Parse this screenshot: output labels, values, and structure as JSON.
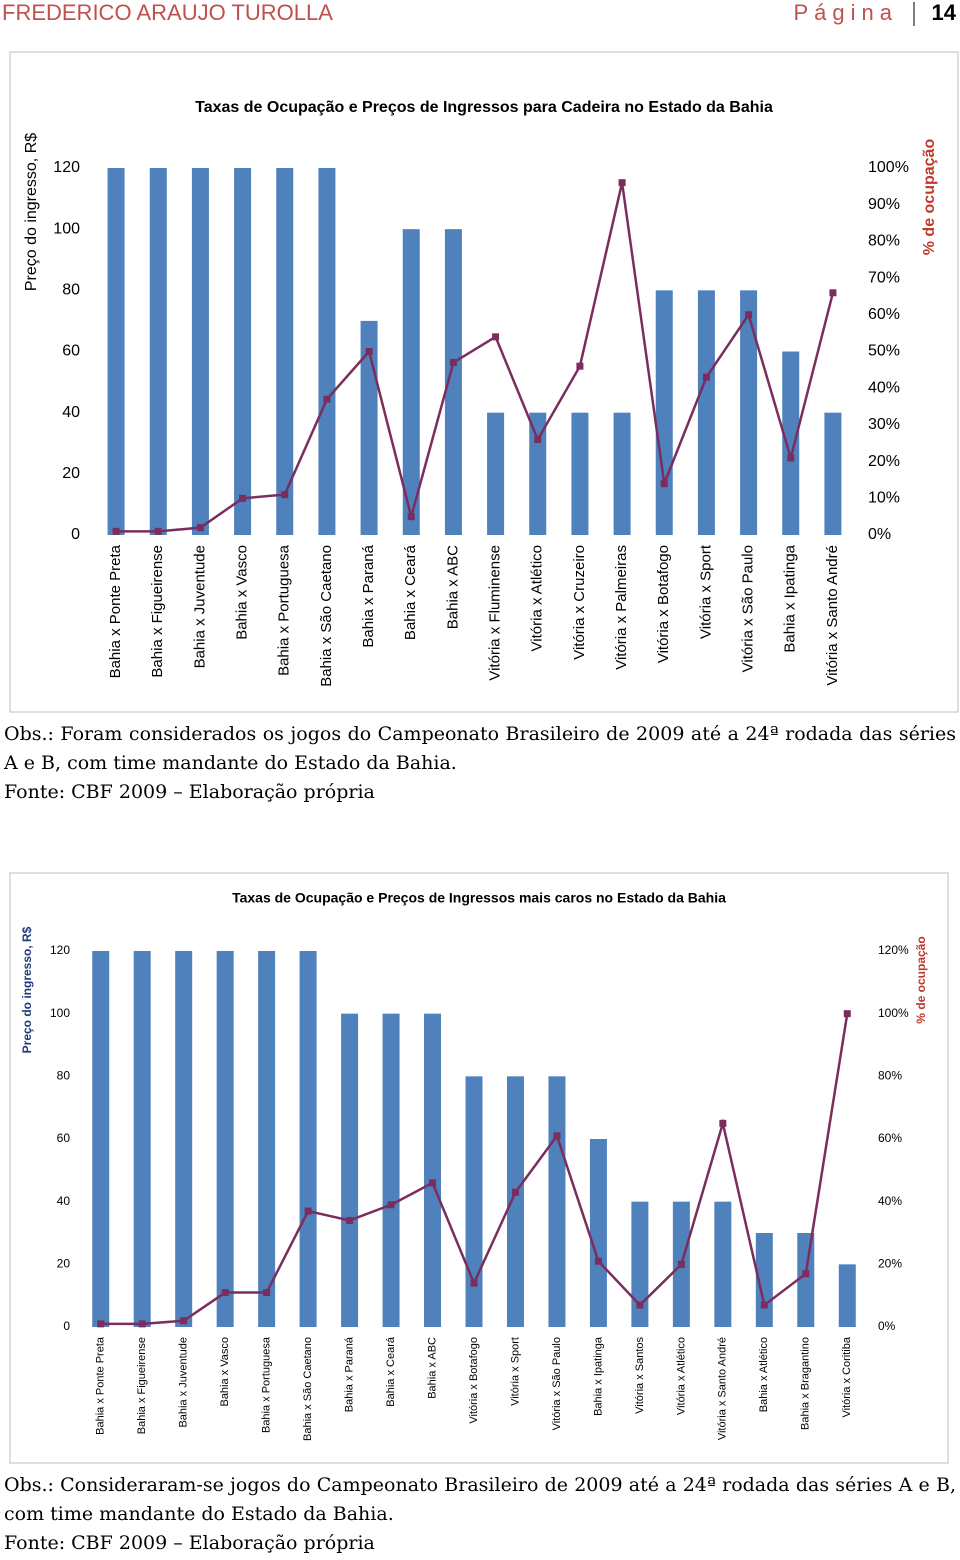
{
  "header": {
    "author": "FREDERICO ARAUJO TUROLLA",
    "page_word": "Página",
    "page_number": "14"
  },
  "chart_data": [
    {
      "type": "bar_line",
      "title": "Taxas de Ocupação e Preços de Ingressos para Cadeira no Estado da Bahia",
      "ylabel": "Preço do ingresso, R$",
      "y2label": "% de ocupação",
      "categories": [
        "Bahia x Ponte Preta",
        "Bahia x Figueirense",
        "Bahia x Juventude",
        "Bahia x Vasco",
        "Bahia x Portuguesa",
        "Bahia x São Caetano",
        "Bahia x Paraná",
        "Bahia x Ceará",
        "Bahia x ABC",
        "Vitória x Fluminense",
        "Vitória x Atlético",
        "Vitória x Cruzeiro",
        "Vitória x Palmeiras",
        "Vitória x Botafogo",
        "Vitória x Sport",
        "Vitória x São Paulo",
        "Bahia x Ipatinga",
        "Vitória x Santo André"
      ],
      "series": [
        {
          "type": "bar",
          "color": "#4f81bd",
          "values": [
            120,
            120,
            120,
            120,
            120,
            120,
            70,
            100,
            100,
            40,
            40,
            40,
            40,
            80,
            80,
            80,
            60,
            40
          ]
        },
        {
          "type": "line",
          "axis": "y2",
          "color": "#7b2d5e",
          "values": [
            1,
            1,
            2,
            10,
            11,
            37,
            50,
            5,
            47,
            54,
            26,
            46,
            96,
            14,
            43,
            60,
            21,
            66
          ]
        }
      ],
      "ylim": [
        0,
        120
      ],
      "yticks": [
        0,
        20,
        40,
        60,
        80,
        100,
        120
      ],
      "y2lim": [
        0,
        100
      ],
      "y2ticks": [
        {
          "value": 0,
          "label": "0%"
        },
        {
          "value": 10,
          "label": "10%"
        },
        {
          "value": 20,
          "label": "20%"
        },
        {
          "value": 30,
          "label": "30%"
        },
        {
          "value": 40,
          "label": "40%"
        },
        {
          "value": 50,
          "label": "50%"
        },
        {
          "value": 60,
          "label": "60%"
        },
        {
          "value": 70,
          "label": "70%"
        },
        {
          "value": 80,
          "label": "80%"
        },
        {
          "value": 90,
          "label": "90%"
        },
        {
          "value": 100,
          "label": "100%"
        }
      ]
    },
    {
      "type": "bar_line",
      "title": "Taxas de Ocupação e Preços de Ingressos mais caros no Estado da Bahia",
      "ylabel": "Preço do ingresso, R$",
      "y2label": "% de ocupação",
      "categories": [
        "Bahia x Ponte Preta",
        "Bahia x Figueirense",
        "Bahia x Juventude",
        "Bahia x Vasco",
        "Bahia x Portuguesa",
        "Bahia x São Caetano",
        "Bahia x Paraná",
        "Bahia x Ceará",
        "Bahia x ABC",
        "Vitória x Botafogo",
        "Vitória x Sport",
        "Vitória x São Paulo",
        "Bahia x Ipatinga",
        "Vitória x Santos",
        "Vitória x Atlético",
        "Vitória x Santo André",
        "Bahia x Atlético",
        "Bahia x Bragantino",
        "Vitória x Coritiba"
      ],
      "series": [
        {
          "type": "bar",
          "color": "#4f81bd",
          "values": [
            120,
            120,
            120,
            120,
            120,
            120,
            100,
            100,
            100,
            80,
            80,
            80,
            60,
            40,
            40,
            40,
            30,
            30,
            20
          ]
        },
        {
          "type": "line",
          "axis": "y2",
          "color": "#7b2d5e",
          "values": [
            1,
            1,
            2,
            11,
            11,
            37,
            34,
            39,
            46,
            14,
            43,
            61,
            21,
            7,
            20,
            65,
            7,
            17,
            100
          ]
        }
      ],
      "ylim": [
        0,
        120
      ],
      "yticks": [
        0,
        20,
        40,
        60,
        80,
        100,
        120
      ],
      "y2lim": [
        0,
        120
      ],
      "y2ticks": [
        {
          "value": 0,
          "label": "0%"
        },
        {
          "value": 20,
          "label": "20%"
        },
        {
          "value": 40,
          "label": "40%"
        },
        {
          "value": 60,
          "label": "60%"
        },
        {
          "value": 80,
          "label": "80%"
        },
        {
          "value": 100,
          "label": "100%"
        },
        {
          "value": 120,
          "label": "120%"
        }
      ]
    }
  ],
  "notes": [
    {
      "obs": "Obs.: Foram considerados os jogos do Campeonato Brasileiro de 2009 até a 24ª rodada das séries A e B, com time mandante do Estado da Bahia.",
      "source": "Fonte: CBF 2009 – Elaboração própria"
    },
    {
      "obs": "Obs.: Consideraram-se jogos do Campeonato Brasileiro de 2009 até a 24ª rodada das séries A e B, com time mandante do Estado da Bahia.",
      "source": "Fonte: CBF 2009 – Elaboração própria"
    }
  ]
}
